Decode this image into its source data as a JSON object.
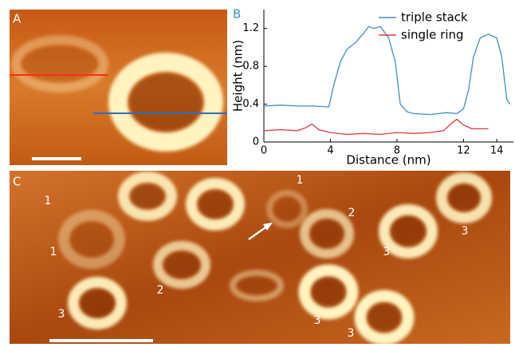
{
  "panels": {
    "a": "A",
    "b": "B",
    "c": "C"
  },
  "panel_c_labels": [
    "1",
    "1",
    "2",
    "3",
    "1",
    "2",
    "3",
    "3",
    "3",
    "3"
  ],
  "chart_data": {
    "type": "line",
    "xlabel": "Distance (nm)",
    "ylabel": "Height (nm)",
    "xlim": [
      0,
      15
    ],
    "ylim": [
      0,
      1.4
    ],
    "xticks": [
      0,
      4,
      8,
      12,
      14
    ],
    "yticks": [
      0,
      {
        "value": 0.4,
        "label": "0.4"
      },
      {
        "value": 0.8,
        "label": "0.8"
      },
      {
        "value": 1.2,
        "label": "1.2"
      }
    ],
    "legend": "upper right",
    "series": [
      {
        "name": "triple stack",
        "color": "#3b8fc9",
        "x": [
          0,
          1,
          2,
          3,
          3.9,
          4.2,
          4.6,
          5,
          5.5,
          6,
          6.3,
          6.6,
          7,
          7.5,
          7.9,
          8.2,
          8.6,
          9,
          10,
          11,
          11.6,
          12,
          12.3,
          12.6,
          13,
          13.5,
          14,
          14.3,
          14.6,
          14.8
        ],
        "values": [
          0.38,
          0.39,
          0.38,
          0.38,
          0.37,
          0.6,
          0.85,
          0.98,
          1.05,
          1.15,
          1.22,
          1.2,
          1.22,
          1.1,
          0.85,
          0.4,
          0.32,
          0.3,
          0.29,
          0.31,
          0.3,
          0.35,
          0.55,
          0.9,
          1.1,
          1.14,
          1.1,
          0.9,
          0.45,
          0.4
        ]
      },
      {
        "name": "single ring",
        "color": "#e0393e",
        "x": [
          0,
          1,
          2,
          2.5,
          2.9,
          3.3,
          4,
          5,
          6,
          7,
          8,
          9,
          10,
          10.8,
          11.3,
          11.6,
          12,
          12.5,
          13.5
        ],
        "values": [
          0.12,
          0.13,
          0.12,
          0.15,
          0.19,
          0.13,
          0.1,
          0.08,
          0.09,
          0.08,
          0.1,
          0.09,
          0.1,
          0.12,
          0.2,
          0.24,
          0.18,
          0.14,
          0.14
        ]
      }
    ]
  }
}
